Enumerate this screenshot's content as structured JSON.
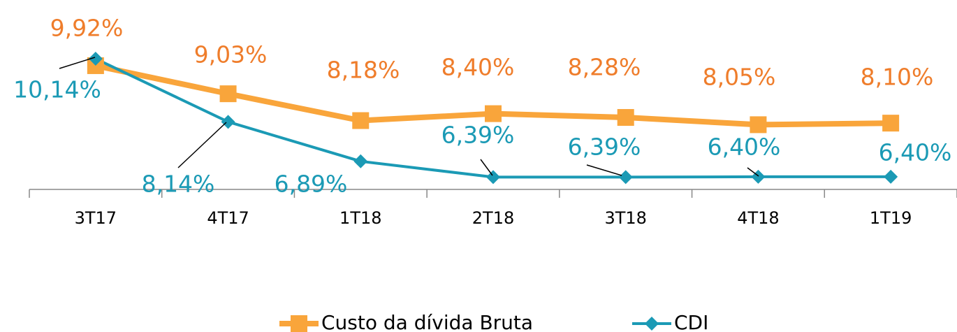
{
  "chart_data": {
    "type": "line",
    "categories": [
      "3T17",
      "4T17",
      "1T18",
      "2T18",
      "3T18",
      "4T18",
      "1T19"
    ],
    "ylim": [
      6,
      12
    ],
    "series": [
      {
        "name": "Custo da dívida Bruta",
        "color": "#f9a53b",
        "marker": "square",
        "values": [
          9.92,
          9.03,
          8.18,
          8.4,
          8.28,
          8.05,
          8.1
        ],
        "value_labels": [
          "9,92%",
          "9,03%",
          "8,18%",
          "8,40%",
          "8,28%",
          "8,05%",
          "8,10%"
        ]
      },
      {
        "name": "CDI",
        "color": "#1b9ab5",
        "marker": "diamond",
        "values": [
          10.14,
          8.14,
          6.89,
          6.39,
          6.39,
          6.4,
          6.4
        ],
        "value_labels": [
          "10,14%",
          "8,14%",
          "6,89%",
          "6,39%",
          "6,39%",
          "6,40%",
          "6,40%"
        ]
      }
    ]
  }
}
